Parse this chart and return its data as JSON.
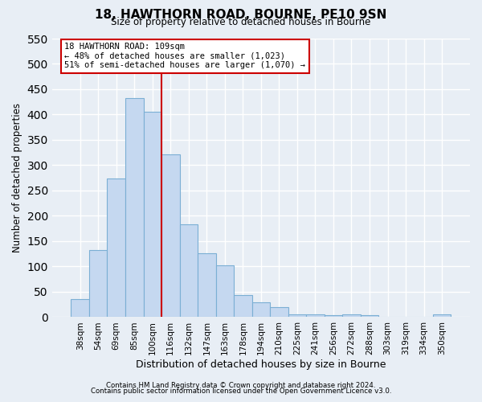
{
  "title": "18, HAWTHORN ROAD, BOURNE, PE10 9SN",
  "subtitle": "Size of property relative to detached houses in Bourne",
  "xlabel": "Distribution of detached houses by size in Bourne",
  "ylabel": "Number of detached properties",
  "bar_labels": [
    "38sqm",
    "54sqm",
    "69sqm",
    "85sqm",
    "100sqm",
    "116sqm",
    "132sqm",
    "147sqm",
    "163sqm",
    "178sqm",
    "194sqm",
    "210sqm",
    "225sqm",
    "241sqm",
    "256sqm",
    "272sqm",
    "288sqm",
    "303sqm",
    "319sqm",
    "334sqm",
    "350sqm"
  ],
  "bar_values": [
    35,
    133,
    273,
    432,
    406,
    322,
    184,
    126,
    103,
    44,
    30,
    20,
    6,
    6,
    4,
    5,
    4,
    1,
    1,
    1,
    5
  ],
  "bar_color": "#c5d8f0",
  "bar_edge_color": "#7bafd4",
  "ylim": [
    0,
    550
  ],
  "yticks": [
    0,
    50,
    100,
    150,
    200,
    250,
    300,
    350,
    400,
    450,
    500,
    550
  ],
  "vline_color": "#cc0000",
  "annotation_title": "18 HAWTHORN ROAD: 109sqm",
  "annotation_line1": "← 48% of detached houses are smaller (1,023)",
  "annotation_line2": "51% of semi-detached houses are larger (1,070) →",
  "annotation_box_color": "#ffffff",
  "annotation_box_edge": "#cc0000",
  "footer1": "Contains HM Land Registry data © Crown copyright and database right 2024.",
  "footer2": "Contains public sector information licensed under the Open Government Licence v3.0.",
  "background_color": "#e8eef5",
  "grid_color": "#ffffff"
}
